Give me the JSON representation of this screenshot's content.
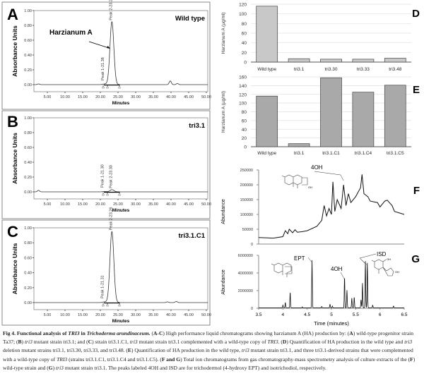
{
  "chart_data": [
    {
      "panel": "A",
      "type": "line",
      "strain_label": "Wild type",
      "xlabel": "Minutes",
      "ylabel": "Absorbance Units",
      "xlim": [
        1.2,
        50.4
      ],
      "ylim": [
        -0.05,
        1.0
      ],
      "xticks": [
        "5.00",
        "10.00",
        "15.00",
        "20.00",
        "25.00",
        "30.00",
        "35.00",
        "40.00",
        "45.00",
        "50.00"
      ],
      "yticks": [
        "0.00",
        "0.20",
        "0.40",
        "0.60",
        "0.80",
        "1.00"
      ],
      "peaks": [
        {
          "label": "Peak 1-21.38",
          "time": 21.38,
          "height": 0.01
        },
        {
          "label": "Peak 2-23.26",
          "time": 23.26,
          "height": 0.85
        }
      ],
      "minor_peaks": [
        {
          "time": 2.5,
          "height": 0.01
        },
        {
          "time": 39.8,
          "height": 0.05
        },
        {
          "time": 41.8,
          "height": 0.015
        }
      ],
      "annotation": "Harzianum A"
    },
    {
      "panel": "B",
      "type": "line",
      "strain_label": "tri3.1",
      "xlabel": "Minutes",
      "ylabel": "Absorbance Units",
      "xlim": [
        1.2,
        50.4
      ],
      "ylim": [
        -0.05,
        1.0
      ],
      "xticks": [
        "5.00",
        "10.00",
        "15.00",
        "20.00",
        "25.00",
        "30.00",
        "35.00",
        "40.00",
        "45.00",
        "50.00"
      ],
      "yticks": [
        "0.00",
        "0.20",
        "0.40",
        "0.60",
        "0.80",
        "1.00"
      ],
      "peaks": [
        {
          "label": "Peak 1-21.30",
          "time": 21.3,
          "height": 0.005
        },
        {
          "label": "Peak 2-23.30",
          "time": 23.3,
          "height": 0.03
        }
      ],
      "minor_peaks": [
        {
          "time": 2.5,
          "height": 0.02
        }
      ]
    },
    {
      "panel": "C",
      "type": "line",
      "strain_label": "tri3.1.C1",
      "xlabel": "Minutes",
      "ylabel": "Absorbance Units",
      "xlim": [
        1.2,
        50.4
      ],
      "ylim": [
        -0.05,
        1.0
      ],
      "xticks": [
        "5.00",
        "10.00",
        "15.00",
        "20.00",
        "25.00",
        "30.00",
        "35.00",
        "40.00",
        "45.00",
        "50.00"
      ],
      "yticks": [
        "0.00",
        "0.20",
        "0.40",
        "0.60",
        "0.80",
        "1.00"
      ],
      "peaks": [
        {
          "label": "Peak 1-21.31",
          "time": 21.31,
          "height": 0.01
        },
        {
          "label": "Peak 2-23.26",
          "time": 23.26,
          "height": 0.95
        }
      ],
      "minor_peaks": [
        {
          "time": 39.0,
          "height": 0.01
        },
        {
          "time": 41.5,
          "height": 0.015
        }
      ]
    },
    {
      "panel": "D",
      "type": "bar",
      "ylabel": "Harzianum A (µg/ml)",
      "ylim": [
        0,
        120
      ],
      "yticks": [
        "0",
        "20",
        "40",
        "60",
        "80",
        "100",
        "120"
      ],
      "grid": true,
      "bar_color": "#c8c8c8",
      "categories": [
        "Wild type",
        "tri3.1",
        "tri3.30",
        "tri3.33",
        "tri3.48"
      ],
      "values": [
        116,
        7,
        6,
        6,
        8
      ]
    },
    {
      "panel": "E",
      "type": "bar",
      "ylabel": "Harzianum A (µg/ml)",
      "ylim": [
        0,
        160
      ],
      "yticks": [
        "0",
        "20",
        "40",
        "60",
        "80",
        "100",
        "120",
        "140",
        "160"
      ],
      "grid": true,
      "bar_color": "#a9a9a9",
      "categories": [
        "Wild type",
        "tri3.1",
        "tri3.1.C1",
        "tri3.1.C4",
        "tri3.1.C5"
      ],
      "values": [
        116,
        7,
        158,
        125,
        141
      ]
    },
    {
      "panel": "F",
      "type": "line",
      "ylabel": "Abundance",
      "xlim": [
        3.5,
        6.5
      ],
      "ylim": [
        0,
        250000
      ],
      "yticks": [
        "0",
        "50000",
        "100000",
        "150000",
        "200000",
        "250000"
      ],
      "x": [
        3.5,
        3.8,
        4.0,
        4.05,
        4.1,
        4.13,
        4.2,
        4.25,
        4.3,
        4.4,
        4.5,
        4.7,
        4.8,
        4.85,
        4.9,
        4.95,
        5.0,
        5.03,
        5.07,
        5.12,
        5.2,
        5.25,
        5.3,
        5.35,
        5.4,
        5.5,
        5.6,
        5.63,
        5.67,
        5.75,
        5.8,
        5.95,
        6.0,
        6.1,
        6.15,
        6.25,
        6.3,
        6.4,
        6.5
      ],
      "y": [
        22000,
        20000,
        25000,
        45000,
        35000,
        50000,
        38000,
        48000,
        40000,
        42000,
        45000,
        60000,
        80000,
        130000,
        95000,
        120000,
        100000,
        210000,
        110000,
        150000,
        120000,
        200000,
        130000,
        170000,
        140000,
        160000,
        190000,
        235000,
        170000,
        160000,
        145000,
        140000,
        125000,
        145000,
        148000,
        130000,
        110000,
        105000,
        100000
      ],
      "annotations": [
        {
          "text": "4OH",
          "time": 5.25
        }
      ]
    },
    {
      "panel": "G",
      "type": "line",
      "ylabel": "Abundance",
      "xlabel": "Time (minutes)",
      "xlim": [
        3.5,
        6.5
      ],
      "ylim": [
        0,
        6000000
      ],
      "xticks": [
        "3.5",
        "4",
        "4.5",
        "5",
        "5.5",
        "6",
        "6.5"
      ],
      "yticks": [
        "0",
        "2000000",
        "4000000",
        "6000000"
      ],
      "peaks": [
        [
          4.0,
          300000
        ],
        [
          4.05,
          600000
        ],
        [
          4.15,
          1750000
        ],
        [
          4.4,
          100000
        ],
        [
          4.6,
          5400000
        ],
        [
          4.8,
          150000
        ],
        [
          4.97,
          400000
        ],
        [
          5.02,
          200000
        ],
        [
          5.27,
          3500000
        ],
        [
          5.32,
          2000000
        ],
        [
          5.42,
          1100000
        ],
        [
          5.47,
          1200000
        ],
        [
          5.61,
          900000
        ],
        [
          5.64,
          2800000
        ],
        [
          5.7,
          5300000
        ],
        [
          5.74,
          5100000
        ],
        [
          5.85,
          300000
        ],
        [
          6.28,
          200000
        ]
      ],
      "annotations": [
        {
          "text": "EPT",
          "time": 4.6
        },
        {
          "text": "4OH",
          "time": 5.27
        },
        {
          "text": "ISD",
          "time": 5.72
        }
      ]
    }
  ],
  "panel_letters": {
    "A": "A",
    "B": "B",
    "C": "C",
    "D": "D",
    "E": "E",
    "F": "F",
    "G": "G"
  },
  "structure_labels": {
    "oh": "OH"
  },
  "caption": [
    {
      "s": "b",
      "t": "Fig 4. Functional analysis of "
    },
    {
      "s": "bi",
      "t": "TRI3"
    },
    {
      "s": "b",
      "t": " in "
    },
    {
      "s": "bi",
      "t": "Trichoderma arundinaceum."
    },
    {
      "s": "n",
      "t": " ("
    },
    {
      "s": "b",
      "t": "A-C"
    },
    {
      "s": "n",
      "t": ") High performance liquid chromatograms showing harzianum A (HA) production by: ("
    },
    {
      "s": "b",
      "t": "A"
    },
    {
      "s": "n",
      "t": ") wild-type progenitor strain Ta37; ("
    },
    {
      "s": "b",
      "t": "B"
    },
    {
      "s": "n",
      "t": ") "
    },
    {
      "s": "i",
      "t": "tri3"
    },
    {
      "s": "n",
      "t": " mutant strain tri3.1; and ("
    },
    {
      "s": "b",
      "t": "C"
    },
    {
      "s": "n",
      "t": ") strain tri3.1.C1, "
    },
    {
      "s": "i",
      "t": "tri3"
    },
    {
      "s": "n",
      "t": " mutant strain tri3.1 complemented with a wild-type copy of "
    },
    {
      "s": "i",
      "t": "TRI3"
    },
    {
      "s": "n",
      "t": ". ("
    },
    {
      "s": "b",
      "t": "D"
    },
    {
      "s": "n",
      "t": ") Quantification of HA production in the wild type and "
    },
    {
      "s": "i",
      "t": "tri3"
    },
    {
      "s": "n",
      "t": " deletion mutant strains tri3.1, tri3.30, tri3.33, and tri3.48. ("
    },
    {
      "s": "b",
      "t": "E"
    },
    {
      "s": "n",
      "t": ") Quantification of HA production in the wild type, "
    },
    {
      "s": "i",
      "t": "tri3"
    },
    {
      "s": "n",
      "t": " mutant strain tri3.1, and three tri3.1-derived strains that were complemented with a wild-type copy of "
    },
    {
      "s": "i",
      "t": "TRI3"
    },
    {
      "s": "n",
      "t": " (strains tri3.1.C1, tri3.1.C4 and tri3.1.C5). ("
    },
    {
      "s": "b",
      "t": "F and G"
    },
    {
      "s": "n",
      "t": ") Total ion chromatograms from gas chromatography-mass spectrometry analysis of culture extracts of the ("
    },
    {
      "s": "b",
      "t": "F"
    },
    {
      "s": "n",
      "t": ") wild-type strain and ("
    },
    {
      "s": "b",
      "t": "G"
    },
    {
      "s": "n",
      "t": ") "
    },
    {
      "s": "i",
      "t": "tri3"
    },
    {
      "s": "n",
      "t": " mutant strain tri3.1. The peaks labeled 4OH and ISD are for trichodermol (4-hydroxy EPT) and isotrichodiol, respectively."
    }
  ]
}
